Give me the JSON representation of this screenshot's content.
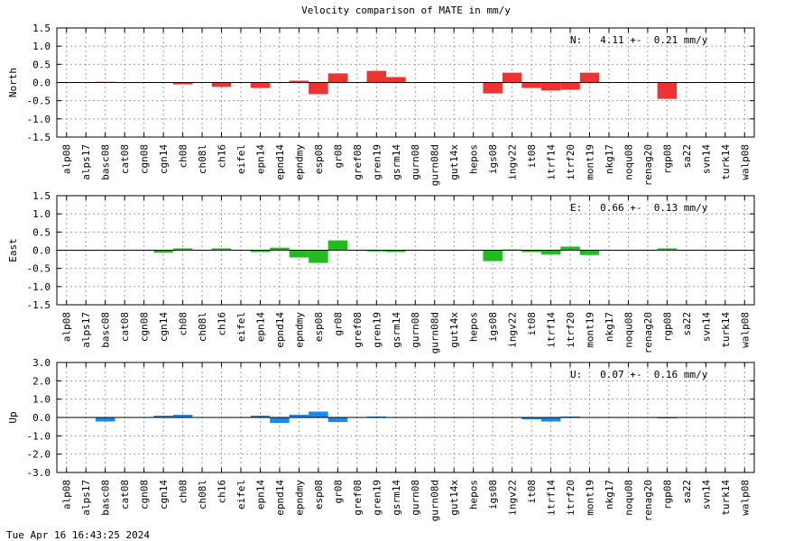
{
  "title": "Velocity comparison of MATE in mm/y",
  "timestamp": "Tue Apr 16 16:43:25 2024",
  "colors": {
    "north": "#ee3333",
    "east": "#22bb22",
    "up": "#1a88ee"
  },
  "chart_data": [
    {
      "type": "bar",
      "ylabel": "North",
      "ylim": [
        -1.5,
        1.5
      ],
      "yticks": [
        "1.5",
        "1.0",
        "0.5",
        "0.0",
        "-0.5",
        "-1.0",
        "-1.5"
      ],
      "annotation": "N:   4.11 +-  0.21 mm/y",
      "grid": true,
      "categories": [
        "alp08",
        "alps17",
        "basc08",
        "cat08",
        "cgn08",
        "cgn14",
        "ch08",
        "ch08l",
        "ch16",
        "eifel",
        "epn14",
        "epnd14",
        "epndmy",
        "esp08",
        "gr08",
        "gref08",
        "gren19",
        "gsrm14",
        "gurn08",
        "gurn08d",
        "gut14x",
        "hepos",
        "igs08",
        "ingv22",
        "it08",
        "itrf14",
        "itrf20",
        "mont19",
        "nkg17",
        "noqu08",
        "renag20",
        "rgp08",
        "sa22",
        "svn14",
        "turk14",
        "walp08"
      ],
      "values": [
        0,
        0,
        0.02,
        0,
        0,
        0,
        -0.05,
        0,
        -0.12,
        0,
        -0.15,
        0,
        0.05,
        -0.32,
        0.25,
        0,
        0.32,
        0.15,
        0,
        0,
        0,
        0,
        -0.3,
        0.27,
        -0.15,
        -0.22,
        -0.2,
        0.27,
        0,
        0,
        0,
        -0.45,
        0,
        0,
        0,
        0
      ]
    },
    {
      "type": "bar",
      "ylabel": "East",
      "ylim": [
        -1.5,
        1.5
      ],
      "yticks": [
        "1.5",
        "1.0",
        "0.5",
        "0.0",
        "-0.5",
        "-1.0",
        "-1.5"
      ],
      "annotation": "E:   0.66 +-  0.13 mm/y",
      "grid": true,
      "categories": [
        "alp08",
        "alps17",
        "basc08",
        "cat08",
        "cgn08",
        "cgn14",
        "ch08",
        "ch08l",
        "ch16",
        "eifel",
        "epn14",
        "epnd14",
        "epndmy",
        "esp08",
        "gr08",
        "gref08",
        "gren19",
        "gsrm14",
        "gurn08",
        "gurn08d",
        "gut14x",
        "hepos",
        "igs08",
        "ingv22",
        "it08",
        "itrf14",
        "itrf20",
        "mont19",
        "nkg17",
        "noqu08",
        "renag20",
        "rgp08",
        "sa22",
        "svn14",
        "turk14",
        "walp08"
      ],
      "values": [
        0,
        0,
        0,
        0,
        0,
        -0.07,
        0.05,
        0,
        0.05,
        0,
        -0.05,
        0.07,
        -0.2,
        -0.35,
        0.27,
        0,
        -0.03,
        -0.05,
        0,
        0,
        0,
        0,
        -0.3,
        0.02,
        -0.05,
        -0.12,
        0.1,
        -0.13,
        0,
        0,
        0,
        0.05,
        0,
        0,
        0,
        0
      ]
    },
    {
      "type": "bar",
      "ylabel": "Up",
      "ylim": [
        -3.0,
        3.0
      ],
      "yticks": [
        "3.0",
        "2.0",
        "1.0",
        "0.0",
        "-1.0",
        "-2.0",
        "-3.0"
      ],
      "annotation": "U:   0.07 +-  0.16 mm/y",
      "grid": true,
      "categories": [
        "alp08",
        "alps17",
        "basc08",
        "cat08",
        "cgn08",
        "cgn14",
        "ch08",
        "ch08l",
        "ch16",
        "eifel",
        "epn14",
        "epnd14",
        "epndmy",
        "esp08",
        "gr08",
        "gref08",
        "gren19",
        "gsrm14",
        "gurn08",
        "gurn08d",
        "gut14x",
        "hepos",
        "igs08",
        "ingv22",
        "it08",
        "itrf14",
        "itrf20",
        "mont19",
        "nkg17",
        "noqu08",
        "renag20",
        "rgp08",
        "sa22",
        "svn14",
        "turk14",
        "walp08"
      ],
      "values": [
        0,
        0,
        -0.22,
        0,
        0,
        0.1,
        0.15,
        0,
        0,
        0,
        0.1,
        -0.3,
        0.15,
        0.32,
        -0.25,
        0,
        0.05,
        0,
        0,
        0,
        0,
        0,
        0,
        0,
        -0.1,
        -0.22,
        0.05,
        0,
        0,
        0,
        0,
        -0.05,
        0,
        0,
        0,
        0
      ]
    }
  ]
}
